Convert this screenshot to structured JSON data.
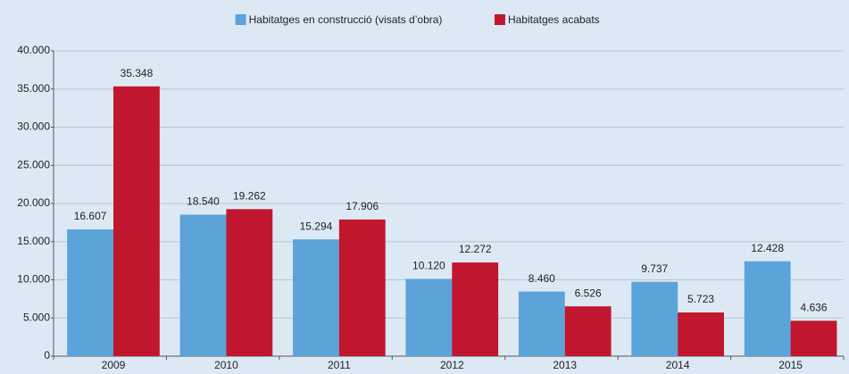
{
  "chart_data": {
    "type": "bar",
    "categories": [
      "2009",
      "2010",
      "2011",
      "2012",
      "2013",
      "2014",
      "2015"
    ],
    "series": [
      {
        "name": "Habitatges en construcció (visats d’obra)",
        "color": "#5ba3d9",
        "values": [
          16607,
          18540,
          15294,
          10120,
          8460,
          9737,
          12428
        ],
        "value_labels": [
          "16.607",
          "18.540",
          "15.294",
          "10.120",
          "8.460",
          "9.737",
          "12.428"
        ]
      },
      {
        "name": "Habitatges acabats",
        "color": "#c0172f",
        "values": [
          35348,
          19262,
          17906,
          12272,
          6526,
          5723,
          4636
        ],
        "value_labels": [
          "35.348",
          "19.262",
          "17.906",
          "12.272",
          "6.526",
          "5.723",
          "4.636"
        ]
      }
    ],
    "ylim": [
      0,
      40000
    ],
    "yticks": [
      0,
      {
        "value": 5000,
        "label": "5.000"
      },
      {
        "value": 10000,
        "label": "10.000"
      },
      {
        "value": 15000,
        "label": "15.000"
      },
      {
        "value": 20000,
        "label": "20.000"
      },
      {
        "value": 25000,
        "label": "25.000"
      },
      {
        "value": 30000,
        "label": "30.000"
      },
      {
        "value": 35000,
        "label": "35.000"
      },
      {
        "value": 40000,
        "label": "40.000"
      }
    ],
    "grid": true,
    "legend": "top"
  }
}
